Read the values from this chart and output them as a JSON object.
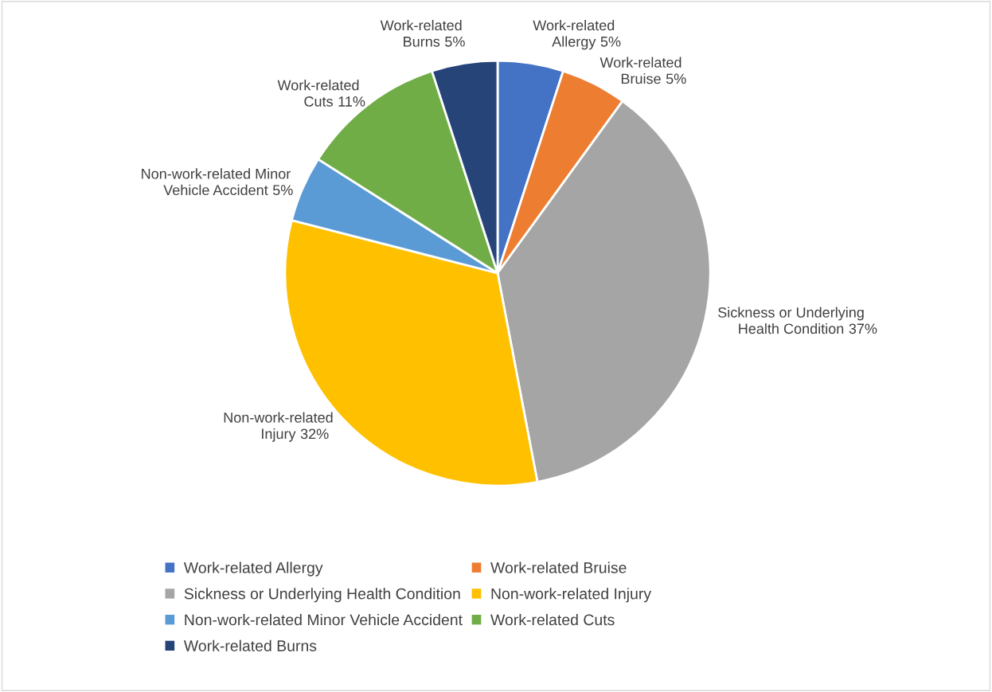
{
  "chart_data": {
    "type": "pie",
    "categories": [
      "Work-related Allergy",
      "Work-related Bruise",
      "Sickness or Underlying Health Condition",
      "Non-work-related Injury",
      "Non-work-related Minor Vehicle Accident",
      "Work-related Cuts",
      "Work-related Burns"
    ],
    "values": [
      5,
      5,
      37,
      32,
      5,
      11,
      5
    ],
    "colors": [
      "#4472c4",
      "#ed7d31",
      "#a5a5a5",
      "#ffc000",
      "#5b9bd5",
      "#70ad47",
      "#264478"
    ],
    "value_labels": [
      "5%",
      "5%",
      "37%",
      "32%",
      "5%",
      "11%",
      "5%"
    ],
    "legend": "bottom"
  }
}
